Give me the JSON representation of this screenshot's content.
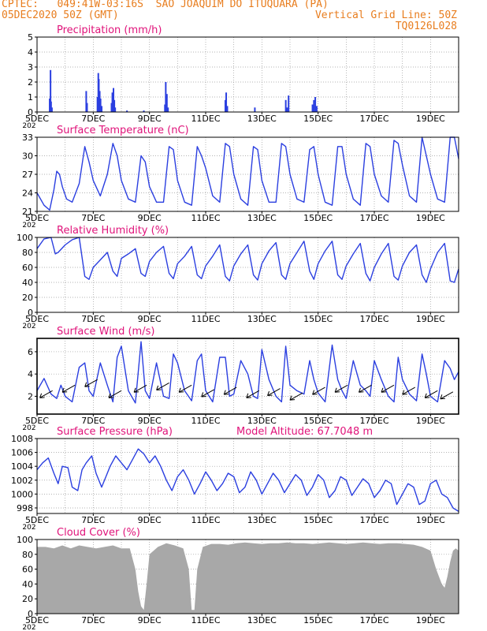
{
  "header": {
    "line1_left": "CPTEC:   049:41W-03:16S  SAO JOAQUIM DO ITUQUARA (PA)",
    "line2_left": "05DEC2020 50Z (GMT)",
    "line2_right": "Vertical Grid Line: 50Z",
    "line3_right": "TQ0126L028"
  },
  "x_ticks": [
    "5DEC",
    "7DEC",
    "9DEC",
    "11DEC",
    "13DEC",
    "15DEC",
    "17DEC",
    "19DEC"
  ],
  "x_year_stub": "202",
  "colors": {
    "header": "#e87d1e",
    "title": "#e0137a",
    "line": "#2b3fe0",
    "bar": "#2b3fe0",
    "cloud": "#a8a8a8",
    "grid": "#9a9a9a"
  },
  "chart_data": [
    {
      "id": "precip",
      "type": "bar",
      "title": "Precipitation (mm/h)",
      "ylim": [
        0,
        5
      ],
      "yticks": [
        0,
        1,
        2,
        3,
        4,
        5
      ],
      "x_unit": "days since 5DEC 00Z",
      "x": [
        0.45,
        0.48,
        0.5,
        0.53,
        1.75,
        1.78,
        2.15,
        2.18,
        2.2,
        2.23,
        2.26,
        2.3,
        2.65,
        2.68,
        2.72,
        2.75,
        2.78,
        3.2,
        3.8,
        4.55,
        4.58,
        4.62,
        4.66,
        6.7,
        6.73,
        6.77,
        7.75,
        8.85,
        8.9,
        8.95,
        9.8,
        9.85,
        9.9,
        9.95
      ],
      "values": [
        0.9,
        2.8,
        0.7,
        0.3,
        1.4,
        0.6,
        1.0,
        2.6,
        2.2,
        1.4,
        0.9,
        0.4,
        0.6,
        1.3,
        1.6,
        0.8,
        0.3,
        0.1,
        0.1,
        0.5,
        2.0,
        1.2,
        0.3,
        0.8,
        1.3,
        0.4,
        0.3,
        0.8,
        0.3,
        1.1,
        0.5,
        0.8,
        1.0,
        0.4
      ]
    },
    {
      "id": "temp",
      "type": "line",
      "title": "Surface Temperature (nC)",
      "ylim": [
        21,
        33
      ],
      "yticks": [
        21,
        24,
        27,
        30,
        33
      ],
      "x": [
        0,
        0.25,
        0.45,
        0.6,
        0.7,
        0.8,
        0.9,
        1.05,
        1.25,
        1.5,
        1.7,
        1.85,
        2.0,
        2.25,
        2.5,
        2.7,
        2.85,
        3.0,
        3.25,
        3.5,
        3.7,
        3.85,
        4.0,
        4.25,
        4.5,
        4.7,
        4.85,
        5.0,
        5.25,
        5.5,
        5.7,
        5.85,
        6.0,
        6.25,
        6.5,
        6.7,
        6.85,
        7.0,
        7.25,
        7.5,
        7.7,
        7.85,
        8.0,
        8.25,
        8.5,
        8.7,
        8.85,
        9.0,
        9.25,
        9.5,
        9.7,
        9.85,
        10.0,
        10.25,
        10.5,
        10.7,
        10.85,
        11.0,
        11.25,
        11.5,
        11.7,
        11.85,
        12.0,
        12.25,
        12.5,
        12.7,
        12.85,
        13.0,
        13.25,
        13.5,
        13.7,
        13.85,
        14.0,
        14.25,
        14.5,
        14.7,
        14.85,
        15.0
      ],
      "values": [
        24.0,
        22.0,
        21.2,
        24.5,
        27.5,
        27.0,
        25.0,
        23.0,
        22.5,
        25.5,
        31.5,
        29.0,
        26.0,
        23.5,
        27.0,
        32.0,
        30.0,
        26.0,
        23.0,
        22.5,
        30.0,
        29.0,
        25.0,
        22.5,
        22.5,
        31.5,
        31.0,
        26.0,
        22.5,
        22.0,
        31.5,
        30.0,
        28.0,
        23.5,
        22.5,
        32.0,
        31.5,
        27.0,
        23.0,
        22.0,
        31.5,
        31.0,
        26.0,
        22.5,
        22.5,
        32.0,
        31.5,
        27.0,
        23.0,
        22.5,
        31.0,
        31.5,
        27.0,
        22.5,
        22.0,
        31.5,
        31.5,
        27.0,
        23.0,
        22.0,
        32.0,
        31.5,
        27.0,
        23.5,
        22.5,
        32.5,
        32.0,
        28.5,
        23.5,
        22.5,
        33.0,
        30.0,
        27.0,
        23.0,
        22.5,
        33.0,
        33.0,
        29.5
      ]
    },
    {
      "id": "rh",
      "type": "line",
      "title": "Relative Humidity (%)",
      "ylim": [
        0,
        100
      ],
      "yticks": [
        0,
        20,
        40,
        60,
        80,
        100
      ],
      "x": [
        0,
        0.25,
        0.5,
        0.65,
        0.75,
        1.0,
        1.25,
        1.5,
        1.7,
        1.85,
        2.0,
        2.25,
        2.5,
        2.7,
        2.85,
        3.0,
        3.25,
        3.5,
        3.7,
        3.85,
        4.0,
        4.25,
        4.5,
        4.7,
        4.85,
        5.0,
        5.25,
        5.5,
        5.7,
        5.85,
        6.0,
        6.25,
        6.5,
        6.7,
        6.85,
        7.0,
        7.25,
        7.5,
        7.7,
        7.85,
        8.0,
        8.25,
        8.5,
        8.7,
        8.85,
        9.0,
        9.25,
        9.5,
        9.7,
        9.85,
        10.0,
        10.25,
        10.5,
        10.7,
        10.85,
        11.0,
        11.25,
        11.5,
        11.7,
        11.85,
        12.0,
        12.25,
        12.5,
        12.7,
        12.85,
        13.0,
        13.25,
        13.5,
        13.7,
        13.85,
        14.0,
        14.25,
        14.5,
        14.7,
        14.85,
        15.0
      ],
      "values": [
        85,
        98,
        100,
        78,
        80,
        90,
        97,
        100,
        48,
        44,
        60,
        70,
        80,
        55,
        48,
        72,
        78,
        85,
        52,
        48,
        68,
        80,
        88,
        52,
        45,
        65,
        75,
        88,
        50,
        45,
        62,
        75,
        90,
        48,
        42,
        62,
        78,
        90,
        50,
        43,
        65,
        82,
        93,
        50,
        44,
        65,
        80,
        95,
        55,
        44,
        65,
        82,
        95,
        50,
        44,
        62,
        78,
        92,
        52,
        42,
        60,
        78,
        92,
        48,
        43,
        62,
        80,
        90,
        50,
        40,
        58,
        80,
        92,
        42,
        40,
        58
      ]
    },
    {
      "id": "wind",
      "type": "line",
      "title": "Surface Wind (m/s)",
      "ylim": [
        0.4,
        7.2
      ],
      "yticks": [
        2,
        4,
        6
      ],
      "x": [
        0,
        0.25,
        0.5,
        0.7,
        0.85,
        1.0,
        1.25,
        1.5,
        1.7,
        1.85,
        2.0,
        2.25,
        2.5,
        2.7,
        2.85,
        3.0,
        3.25,
        3.5,
        3.7,
        3.85,
        4.0,
        4.25,
        4.5,
        4.7,
        4.85,
        5.0,
        5.25,
        5.5,
        5.7,
        5.85,
        6.0,
        6.25,
        6.5,
        6.7,
        6.85,
        7.0,
        7.25,
        7.5,
        7.7,
        7.85,
        8.0,
        8.25,
        8.5,
        8.7,
        8.85,
        9.0,
        9.25,
        9.5,
        9.7,
        9.85,
        10.0,
        10.25,
        10.5,
        10.7,
        10.85,
        11.0,
        11.25,
        11.5,
        11.7,
        11.85,
        12.0,
        12.25,
        12.5,
        12.7,
        12.85,
        13.0,
        13.25,
        13.5,
        13.7,
        13.85,
        14.0,
        14.25,
        14.5,
        14.7,
        14.85,
        15.0
      ],
      "values": [
        2.5,
        3.6,
        2.2,
        1.8,
        3.0,
        2.0,
        1.5,
        4.6,
        5.0,
        2.5,
        2.0,
        5.0,
        3.0,
        1.5,
        5.5,
        6.5,
        2.5,
        1.4,
        6.9,
        2.5,
        1.8,
        5.0,
        2.0,
        1.8,
        5.8,
        5.0,
        2.5,
        1.6,
        5.2,
        5.8,
        2.5,
        1.5,
        5.5,
        5.5,
        2.0,
        2.2,
        5.2,
        4.0,
        2.0,
        1.8,
        6.2,
        3.5,
        2.0,
        1.5,
        6.5,
        3.0,
        2.5,
        2.2,
        5.2,
        3.5,
        2.3,
        1.5,
        6.6,
        3.5,
        2.5,
        1.8,
        5.2,
        3.0,
        2.5,
        2.0,
        5.2,
        3.5,
        2.0,
        1.5,
        5.5,
        3.5,
        2.2,
        1.6,
        5.8,
        4.0,
        2.0,
        1.5,
        5.2,
        4.5,
        3.5,
        4.2
      ],
      "vectors_x": [
        0.55,
        1.35,
        2.15,
        3.0,
        3.9,
        4.7,
        5.5,
        6.3,
        7.1,
        7.9,
        8.65,
        9.45,
        10.25,
        11.05,
        11.9,
        12.7,
        13.45,
        14.25,
        14.8
      ],
      "vectors_mag": [
        2.5,
        3.0,
        3.5,
        2.5,
        3.0,
        3.2,
        3.0,
        2.6,
        2.8,
        2.5,
        2.7,
        2.3,
        2.8,
        3.0,
        3.0,
        3.0,
        2.8,
        2.5,
        2.4
      ]
    },
    {
      "id": "pres",
      "type": "line",
      "title": "Surface Pressure (hPa)",
      "annotation": "Model Altitude: 67.7048 m",
      "ylim": [
        997.2,
        1008
      ],
      "yticks": [
        998,
        1000,
        1002,
        1004,
        1006,
        1008
      ],
      "x": [
        0,
        0.2,
        0.4,
        0.6,
        0.75,
        0.9,
        1.1,
        1.25,
        1.45,
        1.6,
        1.75,
        1.95,
        2.1,
        2.3,
        2.45,
        2.6,
        2.8,
        3.0,
        3.2,
        3.4,
        3.6,
        3.8,
        4.0,
        4.2,
        4.4,
        4.6,
        4.8,
        5.0,
        5.2,
        5.4,
        5.6,
        5.8,
        6.0,
        6.2,
        6.4,
        6.6,
        6.8,
        7.0,
        7.2,
        7.4,
        7.6,
        7.8,
        8.0,
        8.2,
        8.4,
        8.6,
        8.8,
        9.0,
        9.2,
        9.4,
        9.6,
        9.8,
        10.0,
        10.2,
        10.4,
        10.6,
        10.8,
        11.0,
        11.2,
        11.4,
        11.6,
        11.8,
        12.0,
        12.2,
        12.4,
        12.6,
        12.8,
        13.0,
        13.2,
        13.4,
        13.6,
        13.8,
        14.0,
        14.2,
        14.4,
        14.6,
        14.8,
        15.0
      ],
      "values": [
        1003.5,
        1004.5,
        1005.2,
        1003.0,
        1001.5,
        1004.0,
        1003.8,
        1001.0,
        1000.5,
        1003.5,
        1004.5,
        1005.5,
        1003.0,
        1001.0,
        1002.5,
        1004.0,
        1005.5,
        1004.5,
        1003.5,
        1005.0,
        1006.5,
        1005.8,
        1004.5,
        1005.5,
        1004.0,
        1002.0,
        1000.5,
        1002.5,
        1003.5,
        1002.0,
        1000.0,
        1001.5,
        1003.2,
        1002.0,
        1000.5,
        1001.5,
        1003.0,
        1002.5,
        1000.2,
        1001.0,
        1003.2,
        1002.0,
        1000.0,
        1001.5,
        1003.0,
        1002.0,
        1000.2,
        1001.5,
        1002.8,
        1002.0,
        999.8,
        1001.0,
        1002.8,
        1002.0,
        999.5,
        1000.5,
        1002.5,
        1002.0,
        999.8,
        1001.0,
        1002.2,
        1001.5,
        999.5,
        1000.5,
        1002.0,
        1001.5,
        998.5,
        1000.0,
        1001.5,
        1001.0,
        998.5,
        999.0,
        1001.5,
        1002.0,
        1000.0,
        999.5,
        998.0,
        997.5
      ]
    },
    {
      "id": "cloud",
      "type": "area",
      "title": "Cloud Cover (%)",
      "ylim": [
        0,
        100
      ],
      "yticks": [
        0,
        20,
        40,
        60,
        80,
        100
      ],
      "x": [
        0,
        0.3,
        0.6,
        0.9,
        1.2,
        1.5,
        1.8,
        2.1,
        2.4,
        2.7,
        3.0,
        3.3,
        3.5,
        3.6,
        3.7,
        3.8,
        3.9,
        4.0,
        4.3,
        4.6,
        4.9,
        5.2,
        5.4,
        5.5,
        5.6,
        5.7,
        5.9,
        6.2,
        6.5,
        6.8,
        7.1,
        7.4,
        7.7,
        8.0,
        8.3,
        8.6,
        8.9,
        9.2,
        9.5,
        9.8,
        10.1,
        10.4,
        10.7,
        11.0,
        11.3,
        11.6,
        11.9,
        12.2,
        12.5,
        12.8,
        13.1,
        13.4,
        13.7,
        14.0,
        14.2,
        14.4,
        14.5,
        14.6,
        14.7,
        14.8,
        14.9,
        15.0
      ],
      "values": [
        90,
        90,
        88,
        92,
        88,
        92,
        90,
        88,
        90,
        92,
        88,
        88,
        60,
        30,
        10,
        5,
        40,
        80,
        90,
        95,
        92,
        88,
        60,
        5,
        5,
        60,
        90,
        94,
        94,
        93,
        95,
        96,
        95,
        94,
        95,
        95,
        96,
        95,
        95,
        94,
        95,
        96,
        95,
        94,
        95,
        96,
        95,
        94,
        95,
        95,
        94,
        93,
        90,
        85,
        60,
        40,
        35,
        50,
        70,
        85,
        88,
        85
      ]
    }
  ]
}
